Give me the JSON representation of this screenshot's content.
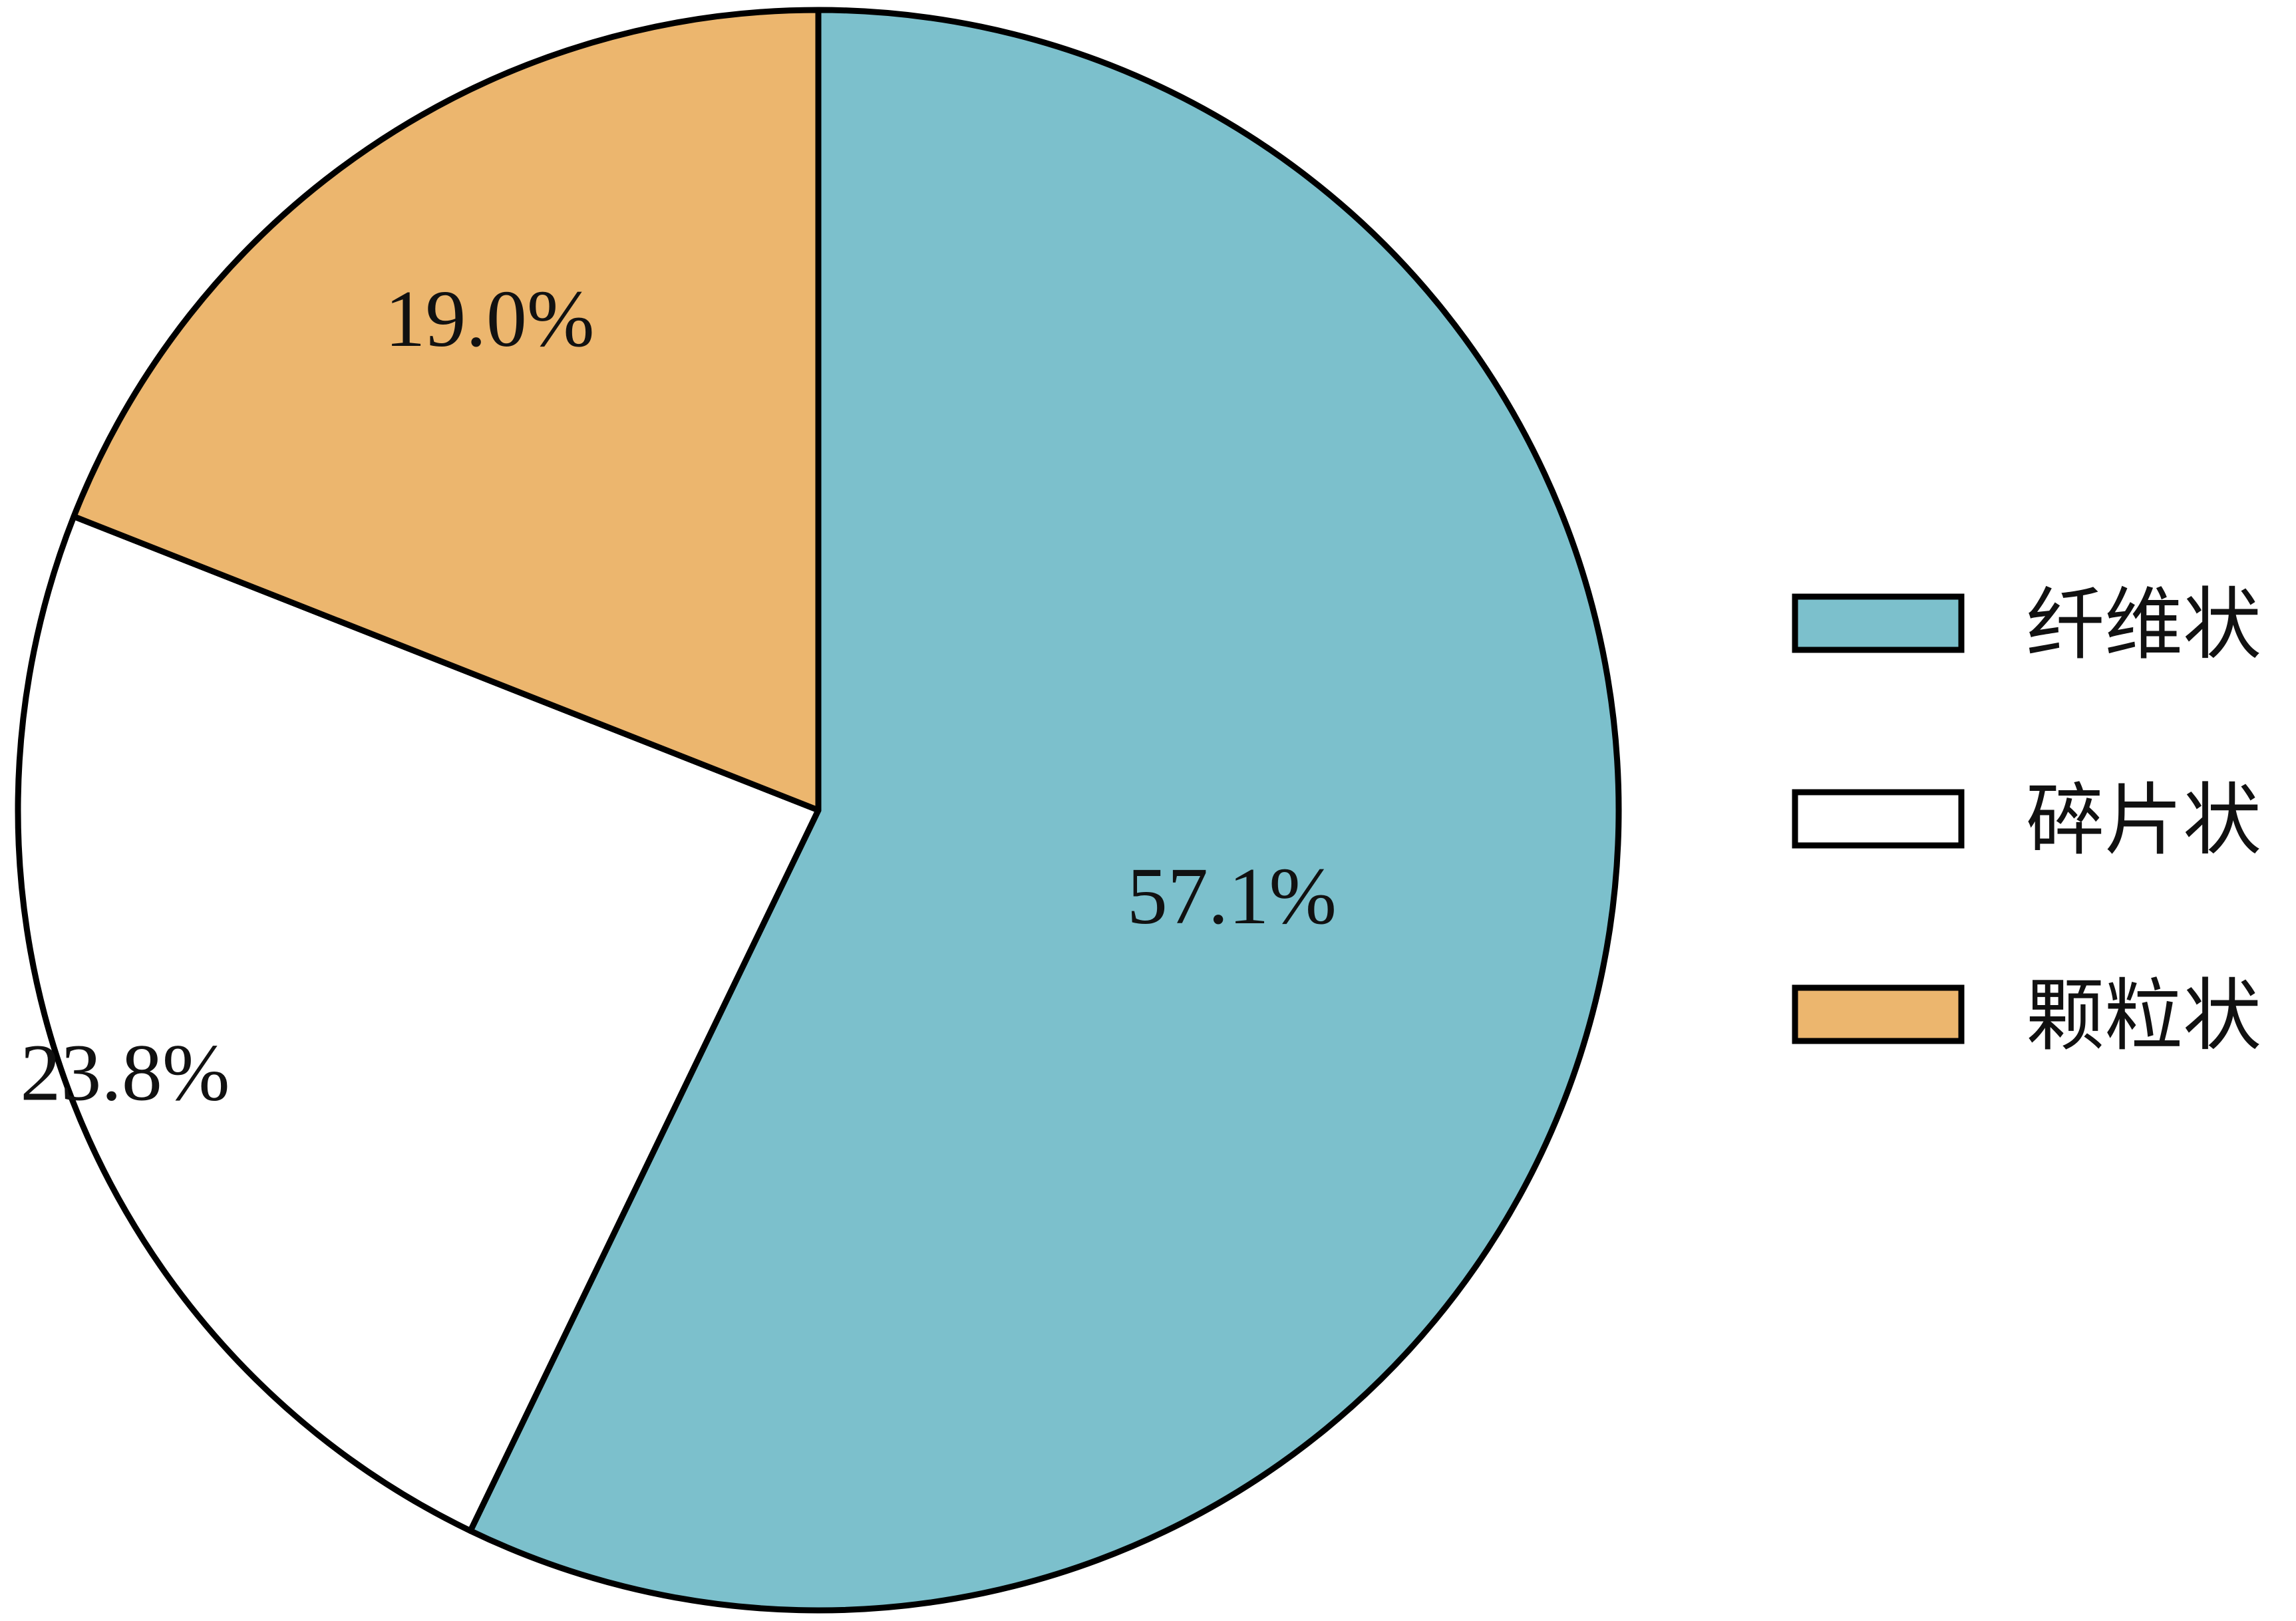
{
  "chart_data": {
    "type": "pie",
    "title": "",
    "categories": [
      "纤维状",
      "碎片状",
      "颗粒状"
    ],
    "values": [
      57.1,
      23.8,
      19.0
    ],
    "labels": [
      "57.1%",
      "23.8%",
      "19.0%"
    ],
    "colors": [
      "#7cc0cc",
      "#ffffff",
      "#ecb66e"
    ],
    "start_angle_deg": 90,
    "direction": "clockwise",
    "legend": {
      "position": "right",
      "entries": [
        "纤维状",
        "碎片状",
        "颗粒状"
      ]
    }
  }
}
